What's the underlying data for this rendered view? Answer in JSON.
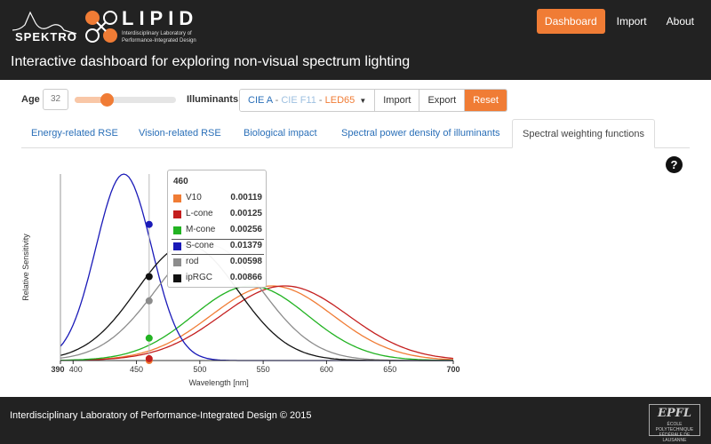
{
  "header": {
    "brand_spektro": "SPEKTRO",
    "brand_lipid": "LIPID",
    "brand_lipid_sub": "Interdisciplinary Laboratory of Performance-Integrated Design",
    "nav": [
      {
        "label": "Dashboard",
        "active": true
      },
      {
        "label": "Import",
        "active": false
      },
      {
        "label": "About",
        "active": false
      }
    ],
    "tagline": "Interactive dashboard for exploring non-visual spectrum lighting",
    "accent_color": "#f07c35"
  },
  "controls": {
    "age_label": "Age",
    "age_value": "32",
    "slider_level": 0.32,
    "illuminants_label": "Illuminants",
    "illuminant_a": "CIE A",
    "illuminant_f11": "CIE F11",
    "illuminant_led": "LED65",
    "separator": " - ",
    "import_label": "Import",
    "export_label": "Export",
    "reset_label": "Reset"
  },
  "tabs": [
    {
      "label": "Energy-related RSE",
      "active": false
    },
    {
      "label": "Vision-related RSE",
      "active": false
    },
    {
      "label": "Biological impact",
      "active": false
    },
    {
      "label": "Spectral power density of illuminants",
      "active": false
    },
    {
      "label": "Spectral weighting functions",
      "active": true
    }
  ],
  "help_icon": "question-circle-icon",
  "help_glyph": "?",
  "tooltip": {
    "title": "460",
    "rows": [
      {
        "name": "V10",
        "value": "0.00119",
        "color": "#f07c35"
      },
      {
        "name": "L-cone",
        "value": "0.00125",
        "color": "#c41e1e"
      },
      {
        "name": "M-cone",
        "value": "0.00256",
        "color": "#22b322"
      },
      {
        "name": "S-cone",
        "value": "0.01379",
        "color": "#1a1ab8"
      },
      {
        "name": "rod",
        "value": "0.00598",
        "color": "#8c8c8c"
      },
      {
        "name": "ipRGC",
        "value": "0.00866",
        "color": "#111111"
      }
    ]
  },
  "chart_data": {
    "type": "line",
    "xlabel": "Wavelength [nm]",
    "ylabel": "Relative Sensitivity",
    "xlim": [
      390,
      700
    ],
    "x_ticks": [
      390,
      400,
      450,
      500,
      550,
      600,
      650,
      700
    ],
    "hover_x": 460,
    "series": [
      {
        "name": "V10",
        "color": "#f07c35",
        "peak": 557,
        "width": 48,
        "height": 0.4,
        "hover_y": 0.0
      },
      {
        "name": "L-cone",
        "color": "#c41e1e",
        "peak": 567,
        "width": 50,
        "height": 0.4,
        "hover_y": 0.01
      },
      {
        "name": "M-cone",
        "color": "#22b322",
        "peak": 540,
        "width": 45,
        "height": 0.4,
        "hover_y": 0.12
      },
      {
        "name": "S-cone",
        "color": "#1a1ab8",
        "peak": 440,
        "width": 22,
        "height": 1.0,
        "hover_y": 0.73
      },
      {
        "name": "rod",
        "color": "#8c8c8c",
        "peak": 507,
        "width": 42,
        "height": 0.62,
        "hover_y": 0.32
      },
      {
        "name": "ipRGC",
        "color": "#111111",
        "peak": 490,
        "width": 40,
        "height": 0.62,
        "hover_y": 0.45
      }
    ]
  },
  "footer": {
    "text": "Interdisciplinary Laboratory of Performance-Integrated Design © 2015",
    "epfl": "EPFL",
    "epfl_sub": "ÉCOLE POLYTECHNIQUE FÉDÉRALE DE LAUSANNE"
  }
}
